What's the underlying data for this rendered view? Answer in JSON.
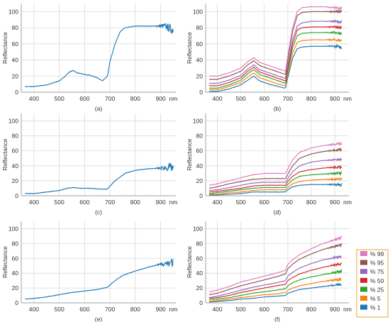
{
  "colors": {
    "single": "#1f77b4",
    "grid": "#d9d9d9",
    "axis": "#8c8c8c",
    "legend_border": "#f0a030"
  },
  "legend": {
    "entries": [
      {
        "label": "% 99",
        "color": "#e377c2"
      },
      {
        "label": "% 95",
        "color": "#8c564b"
      },
      {
        "label": "% 75",
        "color": "#9467bd"
      },
      {
        "label": "% 50",
        "color": "#d62728"
      },
      {
        "label": "% 25",
        "color": "#2ca02c"
      },
      {
        "label": "% 5",
        "color": "#ff7f0e"
      },
      {
        "label": "% 1",
        "color": "#1f77b4"
      }
    ]
  },
  "chart_data": [
    {
      "panel": "a",
      "type": "line",
      "caption": "(a)",
      "ylabel": "Reflectance",
      "unit": "nm",
      "xlim": [
        350,
        960
      ],
      "ylim": [
        0,
        110
      ],
      "xticks": [
        400,
        500,
        600,
        700,
        800,
        900
      ],
      "yticks": [
        0,
        20,
        40,
        60,
        80,
        100
      ],
      "series": [
        {
          "noise": 1,
          "x": [
            365,
            400,
            450,
            500,
            520,
            540,
            555,
            570,
            600,
            620,
            650,
            670,
            690,
            700,
            720,
            740,
            760,
            800,
            850,
            880,
            900,
            920,
            940,
            950
          ],
          "values": [
            7,
            7,
            9,
            14,
            19,
            25,
            27,
            24,
            22,
            21,
            18,
            14,
            20,
            38,
            60,
            75,
            80,
            82,
            82,
            82,
            82,
            82,
            78,
            78
          ]
        }
      ]
    },
    {
      "panel": "b",
      "type": "line",
      "caption": "(b)",
      "ylabel": "Reflectance",
      "unit": "nm",
      "xlim": [
        350,
        960
      ],
      "ylim": [
        0,
        110
      ],
      "xticks": [
        400,
        500,
        600,
        700,
        800,
        900
      ],
      "yticks": [
        0,
        20,
        40,
        60,
        80,
        100
      ],
      "series": [
        {
          "legend_index": 0,
          "x": [
            365,
            400,
            450,
            500,
            530,
            555,
            580,
            620,
            660,
            690,
            700,
            720,
            740,
            760,
            800,
            850,
            900,
            930
          ],
          "values": [
            20,
            20,
            24,
            30,
            38,
            43,
            37,
            33,
            29,
            26,
            45,
            80,
            100,
            105,
            106,
            106,
            105,
            104
          ]
        },
        {
          "legend_index": 1,
          "x": [
            365,
            400,
            450,
            500,
            530,
            555,
            580,
            620,
            660,
            690,
            700,
            720,
            740,
            760,
            800,
            850,
            900,
            930
          ],
          "values": [
            16,
            16,
            20,
            26,
            34,
            39,
            33,
            29,
            25,
            22,
            40,
            75,
            95,
            99,
            100,
            100,
            100,
            100
          ]
        },
        {
          "legend_index": 2,
          "x": [
            365,
            400,
            450,
            500,
            530,
            555,
            580,
            620,
            660,
            690,
            700,
            720,
            740,
            760,
            800,
            850,
            900,
            930
          ],
          "values": [
            11,
            11,
            15,
            21,
            29,
            34,
            28,
            24,
            20,
            17,
            33,
            65,
            82,
            86,
            88,
            88,
            88,
            87
          ]
        },
        {
          "legend_index": 3,
          "x": [
            365,
            400,
            450,
            500,
            530,
            555,
            580,
            620,
            660,
            690,
            700,
            720,
            740,
            760,
            800,
            850,
            900,
            930
          ],
          "values": [
            8,
            8,
            12,
            18,
            26,
            31,
            25,
            21,
            17,
            14,
            30,
            60,
            77,
            80,
            81,
            81,
            81,
            80
          ]
        },
        {
          "legend_index": 4,
          "x": [
            365,
            400,
            450,
            500,
            530,
            555,
            580,
            620,
            660,
            690,
            700,
            720,
            740,
            760,
            800,
            850,
            900,
            930
          ],
          "values": [
            5,
            5,
            9,
            15,
            23,
            28,
            22,
            18,
            14,
            11,
            26,
            55,
            70,
            73,
            74,
            74,
            74,
            73
          ]
        },
        {
          "legend_index": 5,
          "x": [
            365,
            400,
            450,
            500,
            530,
            555,
            580,
            620,
            660,
            690,
            700,
            720,
            740,
            760,
            800,
            850,
            900,
            930
          ],
          "values": [
            3,
            3,
            7,
            12,
            19,
            24,
            18,
            14,
            10,
            8,
            22,
            48,
            62,
            64,
            65,
            65,
            65,
            64
          ]
        },
        {
          "legend_index": 6,
          "x": [
            365,
            400,
            450,
            500,
            530,
            555,
            580,
            620,
            660,
            690,
            700,
            720,
            740,
            760,
            800,
            850,
            900,
            930
          ],
          "values": [
            1,
            1,
            4,
            9,
            15,
            20,
            14,
            10,
            7,
            5,
            18,
            42,
            54,
            56,
            57,
            57,
            57,
            56
          ]
        }
      ]
    },
    {
      "panel": "c",
      "type": "line",
      "caption": "(c)",
      "ylabel": "Reflectance",
      "unit": "nm",
      "xlim": [
        350,
        960
      ],
      "ylim": [
        0,
        110
      ],
      "xticks": [
        400,
        500,
        600,
        700,
        800,
        900
      ],
      "yticks": [
        0,
        20,
        40,
        60,
        80,
        100
      ],
      "series": [
        {
          "noise": 1,
          "x": [
            365,
            400,
            450,
            500,
            530,
            555,
            580,
            620,
            660,
            690,
            700,
            720,
            740,
            760,
            800,
            850,
            900,
            940,
            950
          ],
          "values": [
            3,
            3,
            5,
            7,
            10,
            11,
            10,
            10,
            9,
            9,
            13,
            20,
            25,
            30,
            34,
            36,
            37,
            38,
            38
          ]
        }
      ]
    },
    {
      "panel": "d",
      "type": "line",
      "caption": "(d)",
      "ylabel": "Reflectance",
      "unit": "nm",
      "xlim": [
        350,
        960
      ],
      "ylim": [
        0,
        110
      ],
      "xticks": [
        400,
        500,
        600,
        700,
        800,
        900
      ],
      "yticks": [
        0,
        20,
        40,
        60,
        80,
        100
      ],
      "series": [
        {
          "legend_index": 0,
          "x": [
            365,
            400,
            450,
            500,
            550,
            600,
            650,
            690,
            700,
            720,
            750,
            800,
            850,
            900,
            930
          ],
          "values": [
            14,
            16,
            20,
            24,
            28,
            30,
            30,
            30,
            36,
            48,
            58,
            64,
            67,
            69,
            70
          ]
        },
        {
          "legend_index": 1,
          "x": [
            365,
            400,
            450,
            500,
            550,
            600,
            650,
            690,
            700,
            720,
            750,
            800,
            850,
            900,
            930
          ],
          "values": [
            10,
            12,
            16,
            19,
            22,
            23,
            23,
            23,
            29,
            40,
            50,
            56,
            59,
            61,
            62
          ]
        },
        {
          "legend_index": 2,
          "x": [
            365,
            400,
            450,
            500,
            550,
            600,
            650,
            690,
            700,
            720,
            750,
            800,
            850,
            900,
            930
          ],
          "values": [
            7,
            8,
            11,
            14,
            17,
            18,
            18,
            18,
            23,
            32,
            40,
            45,
            47,
            48,
            48
          ]
        },
        {
          "legend_index": 3,
          "x": [
            365,
            400,
            450,
            500,
            550,
            600,
            650,
            690,
            700,
            720,
            750,
            800,
            850,
            900,
            930
          ],
          "values": [
            5,
            6,
            8,
            10,
            13,
            14,
            14,
            14,
            19,
            26,
            32,
            35,
            37,
            38,
            38
          ]
        },
        {
          "legend_index": 4,
          "x": [
            365,
            400,
            450,
            500,
            550,
            600,
            650,
            690,
            700,
            720,
            750,
            800,
            850,
            900,
            930
          ],
          "values": [
            3,
            4,
            6,
            8,
            10,
            11,
            11,
            11,
            15,
            21,
            26,
            28,
            29,
            30,
            30
          ]
        },
        {
          "legend_index": 5,
          "x": [
            365,
            400,
            450,
            500,
            550,
            600,
            650,
            690,
            700,
            720,
            750,
            800,
            850,
            900,
            930
          ],
          "values": [
            2,
            2,
            4,
            5,
            7,
            8,
            8,
            8,
            11,
            16,
            19,
            21,
            22,
            22,
            22
          ]
        },
        {
          "legend_index": 6,
          "x": [
            365,
            400,
            450,
            500,
            550,
            600,
            650,
            690,
            700,
            720,
            750,
            800,
            850,
            900,
            930
          ],
          "values": [
            1,
            1,
            2,
            3,
            5,
            5,
            5,
            5,
            8,
            12,
            14,
            15,
            15,
            15,
            15
          ]
        }
      ]
    },
    {
      "panel": "e",
      "type": "line",
      "caption": "(e)",
      "ylabel": "Reflectance",
      "unit": "nm",
      "xlim": [
        350,
        960
      ],
      "ylim": [
        0,
        110
      ],
      "xticks": [
        400,
        500,
        600,
        700,
        800,
        900
      ],
      "yticks": [
        0,
        20,
        40,
        60,
        80,
        100
      ],
      "series": [
        {
          "noise": 1,
          "x": [
            365,
            400,
            450,
            500,
            550,
            600,
            650,
            690,
            700,
            720,
            750,
            800,
            850,
            900,
            950
          ],
          "values": [
            5,
            6,
            8,
            11,
            14,
            16,
            18,
            21,
            24,
            30,
            37,
            43,
            48,
            52,
            55
          ]
        }
      ]
    },
    {
      "panel": "f",
      "type": "line",
      "caption": "(f)",
      "ylabel": "Reflectance",
      "unit": "nm",
      "xlim": [
        350,
        960
      ],
      "ylim": [
        0,
        110
      ],
      "xticks": [
        400,
        500,
        600,
        700,
        800,
        900
      ],
      "yticks": [
        0,
        20,
        40,
        60,
        80,
        100
      ],
      "series": [
        {
          "legend_index": 0,
          "x": [
            365,
            400,
            450,
            500,
            550,
            600,
            650,
            690,
            700,
            720,
            750,
            800,
            850,
            900,
            930
          ],
          "values": [
            15,
            17,
            22,
            28,
            32,
            36,
            40,
            44,
            52,
            58,
            65,
            73,
            80,
            85,
            88
          ]
        },
        {
          "legend_index": 1,
          "x": [
            365,
            400,
            450,
            500,
            550,
            600,
            650,
            690,
            700,
            720,
            750,
            800,
            850,
            900,
            930
          ],
          "values": [
            11,
            13,
            18,
            23,
            27,
            31,
            35,
            39,
            46,
            52,
            59,
            66,
            72,
            76,
            79
          ]
        },
        {
          "legend_index": 2,
          "x": [
            365,
            400,
            450,
            500,
            550,
            600,
            650,
            690,
            700,
            720,
            750,
            800,
            850,
            900,
            930
          ],
          "values": [
            7,
            9,
            13,
            17,
            21,
            24,
            27,
            30,
            36,
            41,
            47,
            53,
            58,
            61,
            63
          ]
        },
        {
          "legend_index": 3,
          "x": [
            365,
            400,
            450,
            500,
            550,
            600,
            650,
            690,
            700,
            720,
            750,
            800,
            850,
            900,
            930
          ],
          "values": [
            6,
            7,
            10,
            14,
            17,
            20,
            23,
            25,
            30,
            34,
            39,
            44,
            48,
            51,
            53
          ]
        },
        {
          "legend_index": 4,
          "x": [
            365,
            400,
            450,
            500,
            550,
            600,
            650,
            690,
            700,
            720,
            750,
            800,
            850,
            900,
            930
          ],
          "values": [
            4,
            5,
            7,
            10,
            13,
            15,
            17,
            19,
            23,
            27,
            31,
            35,
            38,
            41,
            43
          ]
        },
        {
          "legend_index": 5,
          "x": [
            365,
            400,
            450,
            500,
            550,
            600,
            650,
            690,
            700,
            720,
            750,
            800,
            850,
            900,
            930
          ],
          "values": [
            2,
            3,
            5,
            7,
            9,
            11,
            12,
            14,
            17,
            20,
            23,
            26,
            29,
            31,
            32
          ]
        },
        {
          "legend_index": 6,
          "x": [
            365,
            400,
            450,
            500,
            550,
            600,
            650,
            690,
            700,
            720,
            750,
            800,
            850,
            900,
            930
          ],
          "values": [
            1,
            2,
            3,
            5,
            6,
            8,
            9,
            10,
            13,
            15,
            18,
            20,
            22,
            24,
            25
          ]
        }
      ]
    }
  ]
}
